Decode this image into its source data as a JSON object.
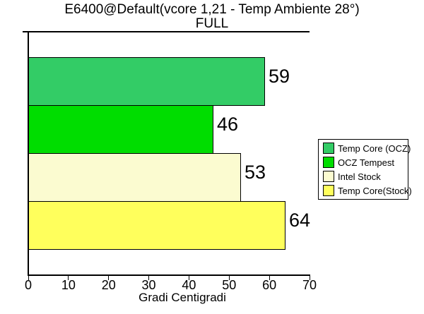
{
  "chart_data": {
    "type": "bar",
    "orientation": "horizontal",
    "title": "E6400@Default(vcore 1,21 - Temp Ambiente 28°)",
    "subtitle": "FULL",
    "xlabel": "Gradi Centigradi",
    "xlim": [
      0,
      70
    ],
    "xticks": [
      0,
      10,
      20,
      30,
      40,
      50,
      60,
      70
    ],
    "grid": false,
    "legend_position": "right",
    "categories": [
      "Temp Core (OCZ)",
      "OCZ Tempest",
      "Intel Stock",
      "Temp Core(Stock)"
    ],
    "values": [
      59,
      46,
      53,
      64
    ],
    "bar_colors": [
      "#33CC66",
      "#00DD00",
      "#FBFBD0",
      "#FFFF5C"
    ]
  },
  "legend": {
    "items": [
      {
        "label": "Temp Core (OCZ)",
        "color": "#33CC66"
      },
      {
        "label": "OCZ Tempest",
        "color": "#00DD00"
      },
      {
        "label": "Intel Stock",
        "color": "#FBFBD0"
      },
      {
        "label": "Temp Core(Stock)",
        "color": "#FFFF5C"
      }
    ]
  },
  "colors": {
    "background": "#FFFFFF",
    "axis": "#000000",
    "text": "#000000",
    "bar_border": "#000000"
  }
}
